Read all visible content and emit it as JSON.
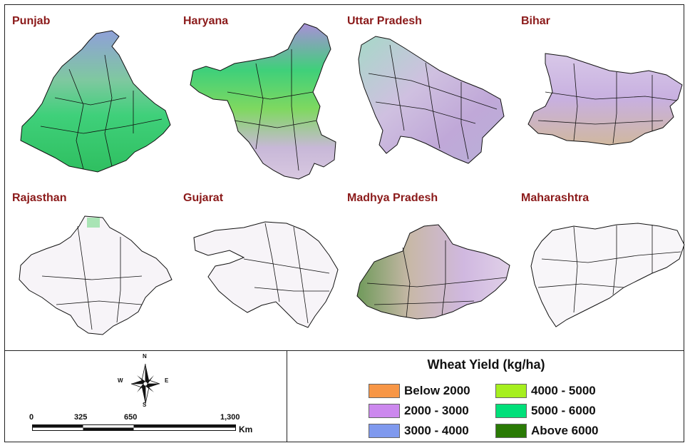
{
  "states": [
    {
      "name": "Punjab"
    },
    {
      "name": "Haryana"
    },
    {
      "name": "Uttar Pradesh"
    },
    {
      "name": "Bihar"
    },
    {
      "name": "Rajasthan"
    },
    {
      "name": "Gujarat"
    },
    {
      "name": "Madhya Pradesh"
    },
    {
      "name": "Maharashtra"
    }
  ],
  "legend": {
    "title": "Wheat Yield (kg/ha)",
    "items": [
      {
        "label": "Below 2000",
        "color": "#f79646"
      },
      {
        "label": "2000 - 3000",
        "color": "#cc88ee"
      },
      {
        "label": "3000 - 4000",
        "color": "#7f99ee"
      },
      {
        "label": "4000 - 5000",
        "color": "#a6ef1e"
      },
      {
        "label": "5000 - 6000",
        "color": "#00e07a"
      },
      {
        "label": "Above 6000",
        "color": "#2a7a05"
      }
    ]
  },
  "scale_bar": {
    "ticks": [
      "0",
      "325",
      "650",
      "1,300"
    ],
    "unit": "Km"
  },
  "compass": {
    "n": "N",
    "s": "S",
    "e": "E",
    "w": "W"
  }
}
